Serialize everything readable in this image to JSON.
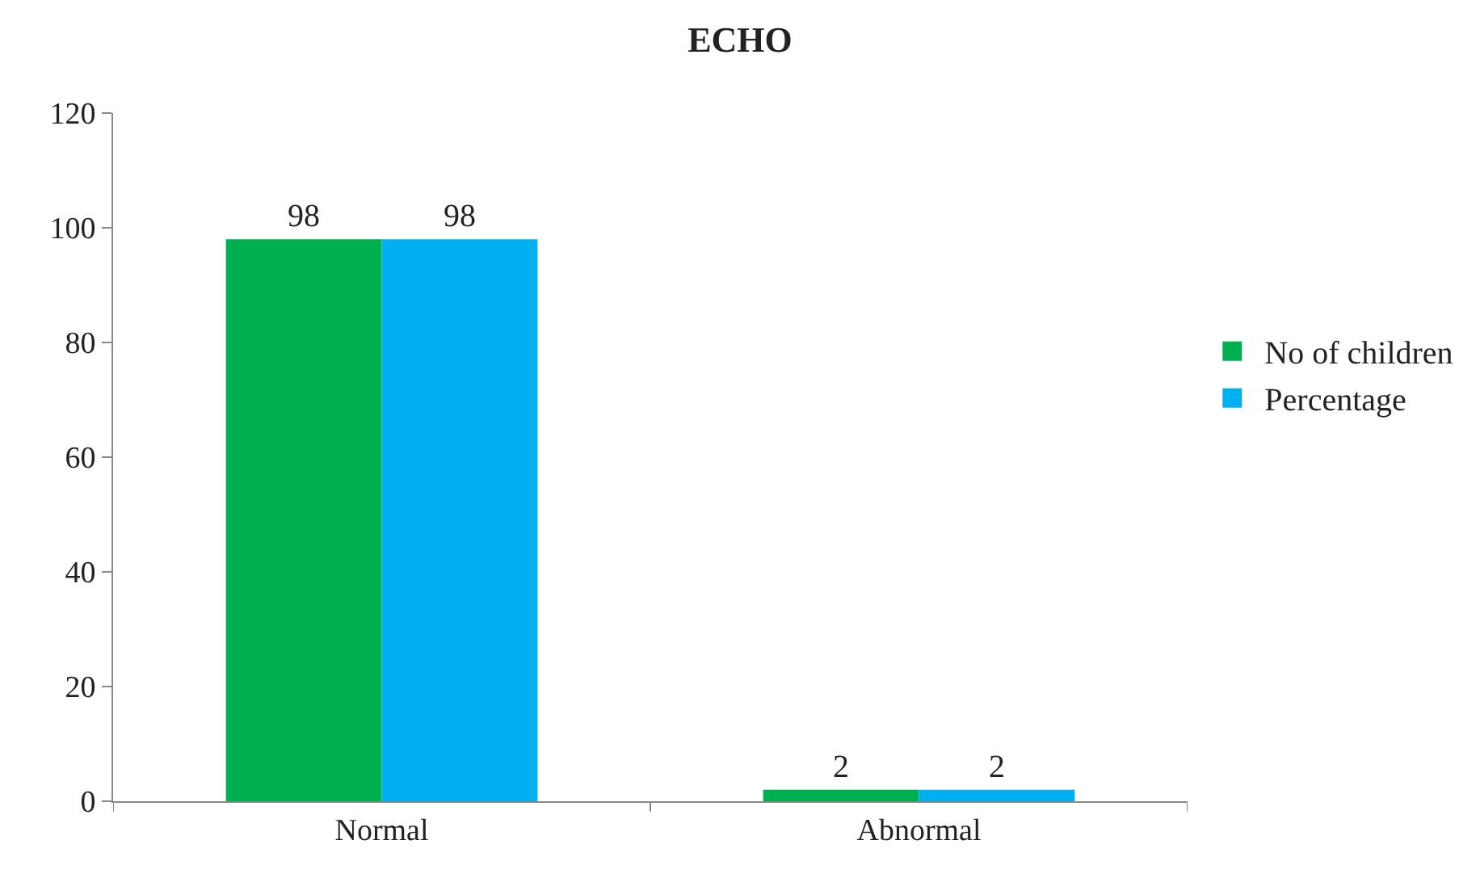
{
  "chart_data": {
    "type": "bar",
    "title": "ECHO",
    "categories": [
      "Normal",
      "Abnormal"
    ],
    "series": [
      {
        "name": "No of children",
        "color": "#00b050",
        "values": [
          98,
          2
        ]
      },
      {
        "name": "Percentage",
        "color": "#00b0f0",
        "values": [
          98,
          2
        ]
      }
    ],
    "ylim": [
      0,
      120
    ],
    "yticks": [
      0,
      20,
      40,
      60,
      80,
      100,
      120
    ],
    "data_labels": true,
    "legend": "right"
  }
}
